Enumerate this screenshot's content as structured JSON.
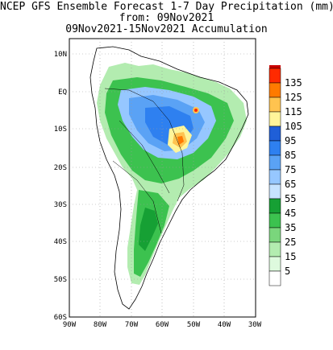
{
  "title": {
    "line1": "NCEP GFS Ensemble Forecast 1-7 Day Precipitation (mm)",
    "line2": "from: 09Nov2021",
    "line3": "09Nov2021-15Nov2021 Accumulation"
  },
  "axes": {
    "lat_labels": [
      "10N",
      "EQ",
      "10S",
      "20S",
      "30S",
      "40S",
      "50S",
      "60S"
    ],
    "lon_labels": [
      "90W",
      "80W",
      "70W",
      "60W",
      "50W",
      "40W",
      "30W"
    ]
  },
  "colorbar": {
    "levels": [
      {
        "label": "135",
        "color": "#ff2a00"
      },
      {
        "label": "125",
        "color": "#ff7a00"
      },
      {
        "label": "115",
        "color": "#ffc34f"
      },
      {
        "label": "105",
        "color": "#fff59a"
      },
      {
        "label": "95",
        "color": "#1f5fd8"
      },
      {
        "label": "85",
        "color": "#2e80f0"
      },
      {
        "label": "75",
        "color": "#5aa2f5"
      },
      {
        "label": "65",
        "color": "#96c7ff"
      },
      {
        "label": "55",
        "color": "#c7e3ff"
      },
      {
        "label": "45",
        "color": "#16a034"
      },
      {
        "label": "35",
        "color": "#3cc24f"
      },
      {
        "label": "25",
        "color": "#7ad67c"
      },
      {
        "label": "15",
        "color": "#b3ecb0"
      },
      {
        "label": "5",
        "color": "#defade"
      },
      {
        "label": "",
        "color": "#ffffff"
      }
    ],
    "top_color": "#c80000"
  }
}
